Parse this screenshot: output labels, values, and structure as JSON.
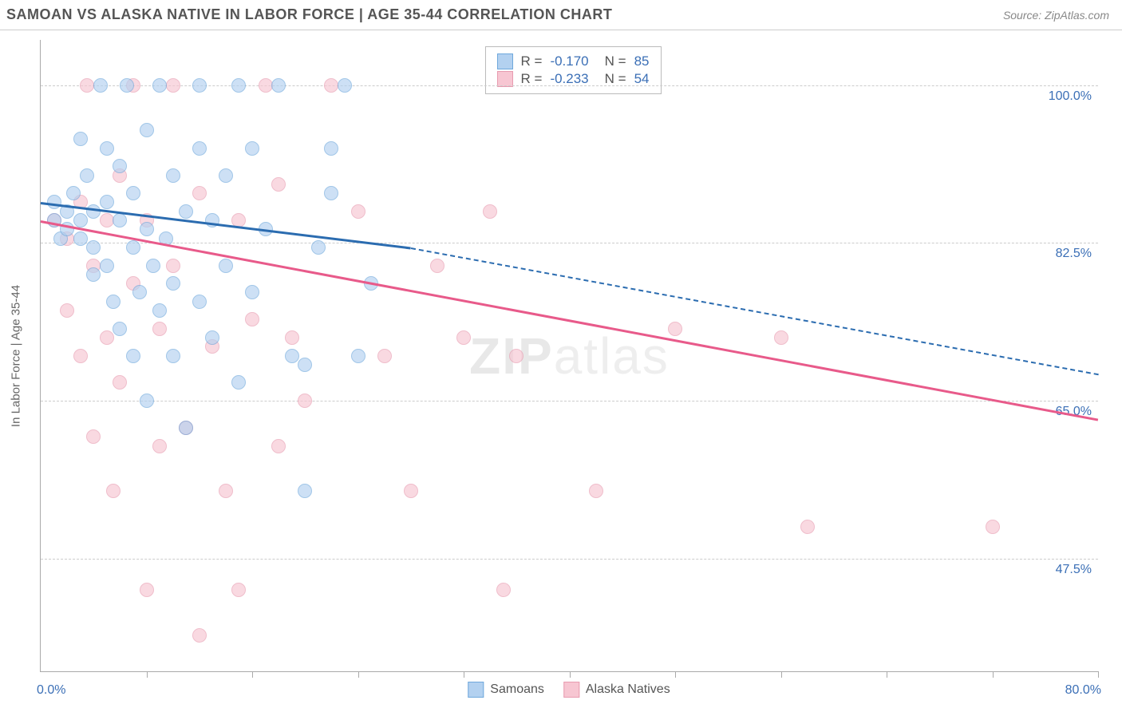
{
  "header": {
    "title": "SAMOAN VS ALASKA NATIVE IN LABOR FORCE | AGE 35-44 CORRELATION CHART",
    "source": "Source: ZipAtlas.com"
  },
  "chart": {
    "type": "scatter",
    "ylabel": "In Labor Force | Age 35-44",
    "watermark": "ZIPatlas",
    "background_color": "#ffffff",
    "grid_color": "#cccccc",
    "axis_color": "#aaaaaa",
    "label_color": "#3b6fb6",
    "xlim": [
      0,
      80
    ],
    "ylim": [
      35,
      105
    ],
    "x_min_label": "0.0%",
    "x_max_label": "80.0%",
    "yticks": [
      {
        "v": 47.5,
        "label": "47.5%"
      },
      {
        "v": 65.0,
        "label": "65.0%"
      },
      {
        "v": 82.5,
        "label": "82.5%"
      },
      {
        "v": 100.0,
        "label": "100.0%"
      }
    ],
    "xticks": [
      8,
      16,
      24,
      32,
      40,
      48,
      56,
      64,
      72,
      80
    ],
    "series": {
      "samoans": {
        "label": "Samoans",
        "fill": "#b3d1f0",
        "stroke": "#6fa8dc",
        "line_color": "#2b6cb0",
        "correlation": "-0.170",
        "n": "85",
        "trend": {
          "x1": 0,
          "y1": 87,
          "x2_solid": 28,
          "y2_solid": 82,
          "x2_dash": 80,
          "y2_dash": 68
        },
        "points": [
          [
            1,
            85
          ],
          [
            1,
            87
          ],
          [
            1.5,
            83
          ],
          [
            2,
            86
          ],
          [
            2,
            84
          ],
          [
            2.5,
            88
          ],
          [
            3,
            85
          ],
          [
            3,
            83
          ],
          [
            3,
            94
          ],
          [
            3.5,
            90
          ],
          [
            4,
            86
          ],
          [
            4,
            82
          ],
          [
            4,
            79
          ],
          [
            4.5,
            100
          ],
          [
            5,
            93
          ],
          [
            5,
            87
          ],
          [
            5,
            80
          ],
          [
            5.5,
            76
          ],
          [
            6,
            91
          ],
          [
            6,
            85
          ],
          [
            6,
            73
          ],
          [
            6.5,
            100
          ],
          [
            7,
            88
          ],
          [
            7,
            82
          ],
          [
            7,
            70
          ],
          [
            7.5,
            77
          ],
          [
            8,
            95
          ],
          [
            8,
            84
          ],
          [
            8,
            65
          ],
          [
            8.5,
            80
          ],
          [
            9,
            100
          ],
          [
            9,
            75
          ],
          [
            9.5,
            83
          ],
          [
            10,
            90
          ],
          [
            10,
            78
          ],
          [
            10,
            70
          ],
          [
            11,
            86
          ],
          [
            11,
            62
          ],
          [
            12,
            93
          ],
          [
            12,
            76
          ],
          [
            12,
            100
          ],
          [
            13,
            85
          ],
          [
            13,
            72
          ],
          [
            14,
            90
          ],
          [
            14,
            80
          ],
          [
            15,
            100
          ],
          [
            15,
            67
          ],
          [
            16,
            93
          ],
          [
            16,
            77
          ],
          [
            17,
            84
          ],
          [
            18,
            100
          ],
          [
            19,
            70
          ],
          [
            20,
            69
          ],
          [
            20,
            55
          ],
          [
            21,
            82
          ],
          [
            22,
            93
          ],
          [
            22,
            88
          ],
          [
            23,
            100
          ],
          [
            24,
            70
          ],
          [
            25,
            78
          ]
        ]
      },
      "alaska_natives": {
        "label": "Alaska Natives",
        "fill": "#f7c6d2",
        "stroke": "#e89bb0",
        "line_color": "#e85a8a",
        "correlation": "-0.233",
        "n": "54",
        "trend": {
          "x1": 0,
          "y1": 85,
          "x2_solid": 80,
          "y2_solid": 63
        },
        "points": [
          [
            1,
            85
          ],
          [
            2,
            83
          ],
          [
            2,
            75
          ],
          [
            3,
            87
          ],
          [
            3,
            70
          ],
          [
            3.5,
            100
          ],
          [
            4,
            80
          ],
          [
            4,
            61
          ],
          [
            5,
            85
          ],
          [
            5,
            72
          ],
          [
            5.5,
            55
          ],
          [
            6,
            90
          ],
          [
            6,
            67
          ],
          [
            7,
            100
          ],
          [
            7,
            78
          ],
          [
            8,
            85
          ],
          [
            8,
            44
          ],
          [
            9,
            73
          ],
          [
            9,
            60
          ],
          [
            10,
            100
          ],
          [
            10,
            80
          ],
          [
            11,
            62
          ],
          [
            12,
            88
          ],
          [
            12,
            39
          ],
          [
            13,
            71
          ],
          [
            14,
            55
          ],
          [
            15,
            85
          ],
          [
            15,
            44
          ],
          [
            16,
            74
          ],
          [
            17,
            100
          ],
          [
            18,
            89
          ],
          [
            18,
            60
          ],
          [
            19,
            72
          ],
          [
            20,
            65
          ],
          [
            22,
            100
          ],
          [
            24,
            86
          ],
          [
            26,
            70
          ],
          [
            28,
            55
          ],
          [
            30,
            80
          ],
          [
            32,
            72
          ],
          [
            34,
            86
          ],
          [
            35,
            44
          ],
          [
            36,
            70
          ],
          [
            42,
            55
          ],
          [
            48,
            73
          ],
          [
            56,
            72
          ],
          [
            58,
            51
          ],
          [
            72,
            51
          ]
        ]
      }
    }
  }
}
